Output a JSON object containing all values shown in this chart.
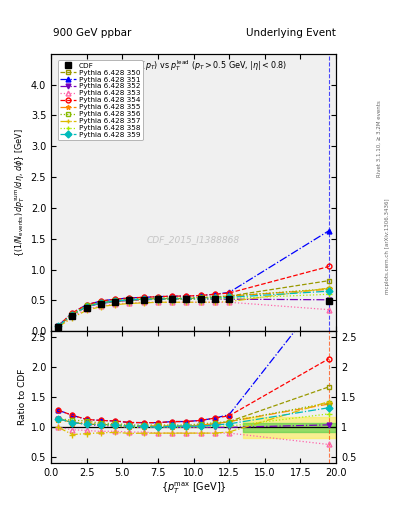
{
  "title_top": "900 GeV ppbar",
  "title_right": "Underlying Event",
  "watermark": "CDF_2015_I1388868",
  "right_label1": "Rivet 3.1.10, ≥ 3.2M events",
  "right_label2": "mcplots.cern.ch [arXiv:1306.3436]",
  "xlim": [
    0,
    20
  ],
  "ylim_main": [
    0,
    4.5
  ],
  "ylim_ratio": [
    0.4,
    2.6
  ],
  "series": [
    {
      "label": "CDF",
      "color": "#000000",
      "marker": "s",
      "markersize": 4,
      "linestyle": "none",
      "filled": true,
      "x": [
        0.5,
        1.5,
        2.5,
        3.5,
        4.5,
        5.5,
        6.5,
        7.5,
        8.5,
        9.5,
        10.5,
        11.5,
        12.5,
        19.5
      ],
      "y": [
        0.07,
        0.25,
        0.38,
        0.44,
        0.47,
        0.5,
        0.51,
        0.52,
        0.52,
        0.52,
        0.52,
        0.52,
        0.52,
        0.49
      ],
      "yerr": [
        0.01,
        0.02,
        0.02,
        0.02,
        0.02,
        0.02,
        0.02,
        0.02,
        0.02,
        0.02,
        0.02,
        0.02,
        0.02,
        0.03
      ]
    },
    {
      "label": "Pythia 6.428 350",
      "color": "#999900",
      "marker": "s",
      "markersize": 3.5,
      "linestyle": "--",
      "filled": false,
      "x": [
        0.5,
        1.5,
        2.5,
        3.5,
        4.5,
        5.5,
        6.5,
        7.5,
        8.5,
        9.5,
        10.5,
        11.5,
        12.5,
        19.5
      ],
      "y": [
        0.08,
        0.27,
        0.4,
        0.46,
        0.49,
        0.51,
        0.52,
        0.53,
        0.53,
        0.53,
        0.54,
        0.55,
        0.57,
        0.82
      ],
      "yerr": null
    },
    {
      "label": "Pythia 6.428 351",
      "color": "#0000ff",
      "marker": "^",
      "markersize": 3.5,
      "linestyle": "-.",
      "filled": true,
      "x": [
        0.5,
        1.5,
        2.5,
        3.5,
        4.5,
        5.5,
        6.5,
        7.5,
        8.5,
        9.5,
        10.5,
        11.5,
        12.5,
        19.5
      ],
      "y": [
        0.09,
        0.3,
        0.43,
        0.49,
        0.52,
        0.54,
        0.55,
        0.56,
        0.57,
        0.57,
        0.58,
        0.6,
        0.63,
        1.63
      ],
      "yerr": null
    },
    {
      "label": "Pythia 6.428 352",
      "color": "#7700bb",
      "marker": "v",
      "markersize": 3.5,
      "linestyle": "-.",
      "filled": true,
      "x": [
        0.5,
        1.5,
        2.5,
        3.5,
        4.5,
        5.5,
        6.5,
        7.5,
        8.5,
        9.5,
        10.5,
        11.5,
        12.5,
        19.5
      ],
      "y": [
        0.08,
        0.27,
        0.4,
        0.45,
        0.48,
        0.5,
        0.51,
        0.52,
        0.52,
        0.52,
        0.52,
        0.52,
        0.52,
        0.51
      ],
      "yerr": null
    },
    {
      "label": "Pythia 6.428 353",
      "color": "#ff66aa",
      "marker": "^",
      "markersize": 3.5,
      "linestyle": ":",
      "filled": false,
      "x": [
        0.5,
        1.5,
        2.5,
        3.5,
        4.5,
        5.5,
        6.5,
        7.5,
        8.5,
        9.5,
        10.5,
        11.5,
        12.5,
        19.5
      ],
      "y": [
        0.07,
        0.24,
        0.36,
        0.41,
        0.44,
        0.46,
        0.47,
        0.47,
        0.47,
        0.47,
        0.47,
        0.47,
        0.47,
        0.35
      ],
      "yerr": null
    },
    {
      "label": "Pythia 6.428 354",
      "color": "#ff0000",
      "marker": "o",
      "markersize": 3.5,
      "linestyle": "--",
      "filled": false,
      "x": [
        0.5,
        1.5,
        2.5,
        3.5,
        4.5,
        5.5,
        6.5,
        7.5,
        8.5,
        9.5,
        10.5,
        11.5,
        12.5,
        19.5
      ],
      "y": [
        0.09,
        0.3,
        0.43,
        0.49,
        0.52,
        0.54,
        0.55,
        0.56,
        0.57,
        0.57,
        0.58,
        0.6,
        0.62,
        1.05
      ],
      "yerr": null
    },
    {
      "label": "Pythia 6.428 355",
      "color": "#ff8800",
      "marker": "*",
      "markersize": 5,
      "linestyle": "-.",
      "filled": true,
      "x": [
        0.5,
        1.5,
        2.5,
        3.5,
        4.5,
        5.5,
        6.5,
        7.5,
        8.5,
        9.5,
        10.5,
        11.5,
        12.5,
        19.5
      ],
      "y": [
        0.08,
        0.27,
        0.41,
        0.46,
        0.49,
        0.51,
        0.52,
        0.53,
        0.53,
        0.53,
        0.54,
        0.55,
        0.57,
        0.68
      ],
      "yerr": null
    },
    {
      "label": "Pythia 6.428 356",
      "color": "#88bb00",
      "marker": "s",
      "markersize": 3.5,
      "linestyle": ":",
      "filled": false,
      "x": [
        0.5,
        1.5,
        2.5,
        3.5,
        4.5,
        5.5,
        6.5,
        7.5,
        8.5,
        9.5,
        10.5,
        11.5,
        12.5,
        19.5
      ],
      "y": [
        0.08,
        0.28,
        0.42,
        0.47,
        0.5,
        0.52,
        0.53,
        0.54,
        0.54,
        0.54,
        0.55,
        0.56,
        0.57,
        0.69
      ],
      "yerr": null
    },
    {
      "label": "Pythia 6.428 357",
      "color": "#ddbb00",
      "marker": "+",
      "markersize": 5,
      "linestyle": "-.",
      "filled": false,
      "x": [
        0.5,
        1.5,
        2.5,
        3.5,
        4.5,
        5.5,
        6.5,
        7.5,
        8.5,
        9.5,
        10.5,
        11.5,
        12.5,
        19.5
      ],
      "y": [
        0.07,
        0.22,
        0.34,
        0.4,
        0.43,
        0.45,
        0.46,
        0.47,
        0.47,
        0.47,
        0.47,
        0.47,
        0.48,
        0.7
      ],
      "yerr": null
    },
    {
      "label": "Pythia 6.428 358",
      "color": "#aaee00",
      "marker": "+",
      "markersize": 5,
      "linestyle": ":",
      "filled": false,
      "x": [
        0.5,
        1.5,
        2.5,
        3.5,
        4.5,
        5.5,
        6.5,
        7.5,
        8.5,
        9.5,
        10.5,
        11.5,
        12.5,
        19.5
      ],
      "y": [
        0.08,
        0.27,
        0.4,
        0.46,
        0.48,
        0.5,
        0.51,
        0.52,
        0.52,
        0.52,
        0.52,
        0.53,
        0.53,
        0.6
      ],
      "yerr": null
    },
    {
      "label": "Pythia 6.428 359",
      "color": "#00bbbb",
      "marker": "D",
      "markersize": 3.5,
      "linestyle": "-.",
      "filled": true,
      "x": [
        0.5,
        1.5,
        2.5,
        3.5,
        4.5,
        5.5,
        6.5,
        7.5,
        8.5,
        9.5,
        10.5,
        11.5,
        12.5,
        19.5
      ],
      "y": [
        0.08,
        0.27,
        0.4,
        0.46,
        0.49,
        0.51,
        0.52,
        0.52,
        0.53,
        0.53,
        0.53,
        0.54,
        0.55,
        0.65
      ],
      "yerr": null
    }
  ],
  "ratio_band_green": [
    0.93,
    1.07
  ],
  "ratio_band_yellow": [
    0.83,
    1.17
  ],
  "ratio_band_xstart": 13.5
}
